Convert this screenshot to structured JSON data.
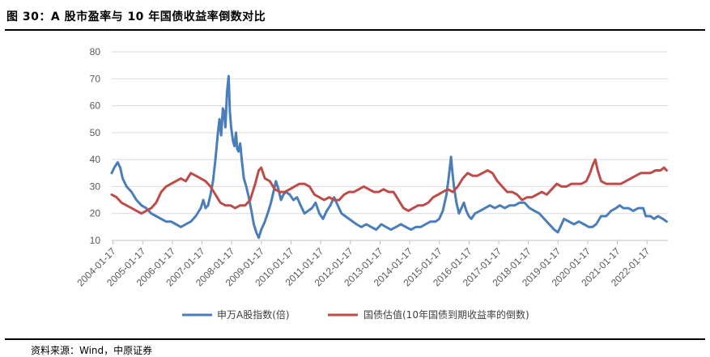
{
  "header": {
    "title": "图 30：A 股市盈率与 10 年国债收益率倒数对比"
  },
  "footer": {
    "source": "资料来源：Wind，中原证券"
  },
  "colors": {
    "series_pe": "#4a7ebb",
    "series_bond": "#be4b48",
    "grid": "#d9d9d9",
    "axis": "#bfbfbf"
  },
  "chart_data": {
    "type": "line",
    "title": "",
    "xlabel": "",
    "ylabel": "",
    "ylim": [
      10,
      80
    ],
    "yticks": [
      10,
      20,
      30,
      40,
      50,
      60,
      70,
      80
    ],
    "xlim": [
      "2004-01-01",
      "2022-10-01"
    ],
    "xticks": [
      "2004-01-17",
      "2005-01-17",
      "2006-01-17",
      "2007-01-17",
      "2008-01-17",
      "2009-01-17",
      "2010-01-17",
      "2011-01-17",
      "2012-01-17",
      "2013-01-17",
      "2014-01-17",
      "2015-01-17",
      "2016-01-17",
      "2017-01-17",
      "2018-01-17",
      "2019-01-17",
      "2020-01-17",
      "2021-01-17",
      "2022-01-17"
    ],
    "grid": "horizontal",
    "legend_position": "bottom",
    "series": [
      {
        "name": "申万A股指数(倍)",
        "points": [
          [
            "2004-01-01",
            35
          ],
          [
            "2004-02-01",
            37
          ],
          [
            "2004-03-15",
            39
          ],
          [
            "2004-04-15",
            37
          ],
          [
            "2004-05-15",
            33
          ],
          [
            "2004-07-01",
            30
          ],
          [
            "2004-09-01",
            28
          ],
          [
            "2004-11-01",
            25
          ],
          [
            "2005-01-01",
            23
          ],
          [
            "2005-03-01",
            22
          ],
          [
            "2005-05-01",
            20
          ],
          [
            "2005-07-01",
            19
          ],
          [
            "2005-09-01",
            18
          ],
          [
            "2005-11-01",
            17
          ],
          [
            "2006-01-01",
            17
          ],
          [
            "2006-03-01",
            16
          ],
          [
            "2006-05-01",
            15
          ],
          [
            "2006-07-01",
            16
          ],
          [
            "2006-09-01",
            17
          ],
          [
            "2006-11-01",
            19
          ],
          [
            "2007-01-01",
            22
          ],
          [
            "2007-02-01",
            25
          ],
          [
            "2007-03-01",
            22
          ],
          [
            "2007-04-01",
            23
          ],
          [
            "2007-05-01",
            27
          ],
          [
            "2007-06-01",
            32
          ],
          [
            "2007-07-01",
            40
          ],
          [
            "2007-08-01",
            50
          ],
          [
            "2007-08-20",
            55
          ],
          [
            "2007-09-10",
            49
          ],
          [
            "2007-10-01",
            59
          ],
          [
            "2007-10-15",
            58
          ],
          [
            "2007-11-01",
            52
          ],
          [
            "2007-11-20",
            65
          ],
          [
            "2007-12-10",
            71
          ],
          [
            "2007-12-25",
            58
          ],
          [
            "2008-01-10",
            52
          ],
          [
            "2008-02-01",
            47
          ],
          [
            "2008-02-20",
            45
          ],
          [
            "2008-03-10",
            50
          ],
          [
            "2008-03-25",
            44
          ],
          [
            "2008-04-10",
            43
          ],
          [
            "2008-05-01",
            46
          ],
          [
            "2008-05-20",
            40
          ],
          [
            "2008-06-15",
            33
          ],
          [
            "2008-07-15",
            30
          ],
          [
            "2008-08-15",
            26
          ],
          [
            "2008-09-15",
            21
          ],
          [
            "2008-10-15",
            16
          ],
          [
            "2008-11-15",
            13
          ],
          [
            "2008-12-15",
            11
          ],
          [
            "2009-01-15",
            14
          ],
          [
            "2009-03-01",
            17
          ],
          [
            "2009-04-15",
            21
          ],
          [
            "2009-05-15",
            24
          ],
          [
            "2009-06-15",
            28
          ],
          [
            "2009-07-15",
            32
          ],
          [
            "2009-08-15",
            29
          ],
          [
            "2009-09-15",
            25
          ],
          [
            "2009-10-15",
            27
          ],
          [
            "2009-11-15",
            28
          ],
          [
            "2010-01-01",
            27
          ],
          [
            "2010-02-15",
            25
          ],
          [
            "2010-04-01",
            26
          ],
          [
            "2010-05-15",
            23
          ],
          [
            "2010-07-01",
            20
          ],
          [
            "2010-08-15",
            21
          ],
          [
            "2010-10-01",
            22
          ],
          [
            "2010-11-15",
            24
          ],
          [
            "2011-01-01",
            20
          ],
          [
            "2011-02-15",
            18
          ],
          [
            "2011-04-01",
            21
          ],
          [
            "2011-05-15",
            23
          ],
          [
            "2011-07-01",
            26
          ],
          [
            "2011-08-15",
            23
          ],
          [
            "2011-10-01",
            20
          ],
          [
            "2011-11-15",
            19
          ],
          [
            "2012-01-01",
            18
          ],
          [
            "2012-02-15",
            17
          ],
          [
            "2012-04-01",
            16
          ],
          [
            "2012-06-01",
            15
          ],
          [
            "2012-08-01",
            16
          ],
          [
            "2012-10-01",
            15
          ],
          [
            "2012-12-01",
            14
          ],
          [
            "2013-02-01",
            16
          ],
          [
            "2013-04-01",
            15
          ],
          [
            "2013-06-01",
            14
          ],
          [
            "2013-08-01",
            15
          ],
          [
            "2013-10-01",
            16
          ],
          [
            "2013-12-01",
            15
          ],
          [
            "2014-02-01",
            14
          ],
          [
            "2014-04-01",
            15
          ],
          [
            "2014-06-01",
            15
          ],
          [
            "2014-08-01",
            16
          ],
          [
            "2014-10-01",
            17
          ],
          [
            "2014-12-01",
            17
          ],
          [
            "2015-01-15",
            18
          ],
          [
            "2015-03-01",
            21
          ],
          [
            "2015-04-15",
            27
          ],
          [
            "2015-05-15",
            34
          ],
          [
            "2015-06-10",
            41
          ],
          [
            "2015-06-25",
            36
          ],
          [
            "2015-07-15",
            30
          ],
          [
            "2015-08-15",
            24
          ],
          [
            "2015-09-15",
            20
          ],
          [
            "2015-10-15",
            22
          ],
          [
            "2015-11-15",
            24
          ],
          [
            "2015-12-15",
            21
          ],
          [
            "2016-01-15",
            19
          ],
          [
            "2016-02-15",
            18
          ],
          [
            "2016-04-01",
            20
          ],
          [
            "2016-06-01",
            21
          ],
          [
            "2016-08-01",
            22
          ],
          [
            "2016-10-01",
            23
          ],
          [
            "2016-12-01",
            22
          ],
          [
            "2017-02-01",
            23
          ],
          [
            "2017-04-01",
            22
          ],
          [
            "2017-06-01",
            23
          ],
          [
            "2017-08-01",
            23
          ],
          [
            "2017-10-01",
            24
          ],
          [
            "2017-12-01",
            24
          ],
          [
            "2018-02-01",
            22
          ],
          [
            "2018-04-01",
            21
          ],
          [
            "2018-06-01",
            20
          ],
          [
            "2018-08-01",
            18
          ],
          [
            "2018-10-01",
            16
          ],
          [
            "2018-12-01",
            14
          ],
          [
            "2019-01-15",
            13
          ],
          [
            "2019-02-15",
            15
          ],
          [
            "2019-04-01",
            18
          ],
          [
            "2019-06-01",
            17
          ],
          [
            "2019-08-01",
            16
          ],
          [
            "2019-10-01",
            17
          ],
          [
            "2019-12-01",
            16
          ],
          [
            "2020-02-01",
            15
          ],
          [
            "2020-03-15",
            15
          ],
          [
            "2020-05-01",
            16
          ],
          [
            "2020-07-01",
            19
          ],
          [
            "2020-09-01",
            19
          ],
          [
            "2020-11-01",
            21
          ],
          [
            "2021-01-01",
            22
          ],
          [
            "2021-02-15",
            23
          ],
          [
            "2021-04-01",
            22
          ],
          [
            "2021-06-01",
            22
          ],
          [
            "2021-08-01",
            21
          ],
          [
            "2021-10-01",
            22
          ],
          [
            "2021-12-01",
            22
          ],
          [
            "2022-01-01",
            19
          ],
          [
            "2022-03-01",
            19
          ],
          [
            "2022-04-15",
            18
          ],
          [
            "2022-06-01",
            19
          ],
          [
            "2022-08-01",
            18
          ],
          [
            "2022-09-15",
            17
          ]
        ]
      },
      {
        "name": "国债估值(10年国债到期收益率的倒数)",
        "points": [
          [
            "2004-01-01",
            27
          ],
          [
            "2004-03-01",
            26
          ],
          [
            "2004-05-01",
            24
          ],
          [
            "2004-07-01",
            23
          ],
          [
            "2004-09-01",
            22
          ],
          [
            "2004-11-01",
            21
          ],
          [
            "2005-01-01",
            20
          ],
          [
            "2005-03-01",
            21
          ],
          [
            "2005-05-01",
            22
          ],
          [
            "2005-07-01",
            24
          ],
          [
            "2005-09-01",
            28
          ],
          [
            "2005-11-01",
            30
          ],
          [
            "2006-01-01",
            31
          ],
          [
            "2006-03-01",
            32
          ],
          [
            "2006-05-01",
            33
          ],
          [
            "2006-07-01",
            32
          ],
          [
            "2006-09-01",
            35
          ],
          [
            "2006-11-01",
            34
          ],
          [
            "2007-01-01",
            33
          ],
          [
            "2007-03-01",
            32
          ],
          [
            "2007-05-01",
            30
          ],
          [
            "2007-07-01",
            27
          ],
          [
            "2007-09-01",
            24
          ],
          [
            "2007-11-01",
            23
          ],
          [
            "2008-01-01",
            23
          ],
          [
            "2008-03-01",
            22
          ],
          [
            "2008-05-01",
            23
          ],
          [
            "2008-07-01",
            23
          ],
          [
            "2008-09-01",
            25
          ],
          [
            "2008-11-01",
            31
          ],
          [
            "2008-12-15",
            36
          ],
          [
            "2009-01-15",
            37
          ],
          [
            "2009-03-01",
            33
          ],
          [
            "2009-05-01",
            32
          ],
          [
            "2009-07-01",
            29
          ],
          [
            "2009-09-01",
            28
          ],
          [
            "2009-11-01",
            28
          ],
          [
            "2010-01-01",
            29
          ],
          [
            "2010-03-01",
            30
          ],
          [
            "2010-05-01",
            31
          ],
          [
            "2010-07-01",
            31
          ],
          [
            "2010-09-01",
            30
          ],
          [
            "2010-11-01",
            27
          ],
          [
            "2011-01-01",
            26
          ],
          [
            "2011-03-01",
            25
          ],
          [
            "2011-05-01",
            26
          ],
          [
            "2011-07-01",
            25
          ],
          [
            "2011-09-01",
            25
          ],
          [
            "2011-11-01",
            27
          ],
          [
            "2012-01-01",
            28
          ],
          [
            "2012-03-01",
            28
          ],
          [
            "2012-05-01",
            29
          ],
          [
            "2012-07-01",
            30
          ],
          [
            "2012-09-01",
            29
          ],
          [
            "2012-11-01",
            28
          ],
          [
            "2013-01-01",
            28
          ],
          [
            "2013-03-01",
            29
          ],
          [
            "2013-05-01",
            28
          ],
          [
            "2013-07-01",
            28
          ],
          [
            "2013-09-01",
            25
          ],
          [
            "2013-11-01",
            22
          ],
          [
            "2014-01-01",
            21
          ],
          [
            "2014-03-01",
            22
          ],
          [
            "2014-05-01",
            23
          ],
          [
            "2014-07-01",
            23
          ],
          [
            "2014-09-01",
            24
          ],
          [
            "2014-11-01",
            26
          ],
          [
            "2015-01-01",
            27
          ],
          [
            "2015-03-01",
            28
          ],
          [
            "2015-05-01",
            29
          ],
          [
            "2015-07-01",
            28
          ],
          [
            "2015-09-01",
            30
          ],
          [
            "2015-11-01",
            33
          ],
          [
            "2016-01-01",
            35
          ],
          [
            "2016-03-01",
            34
          ],
          [
            "2016-05-01",
            34
          ],
          [
            "2016-07-01",
            35
          ],
          [
            "2016-09-01",
            36
          ],
          [
            "2016-11-01",
            35
          ],
          [
            "2017-01-01",
            32
          ],
          [
            "2017-03-01",
            30
          ],
          [
            "2017-05-01",
            28
          ],
          [
            "2017-07-01",
            28
          ],
          [
            "2017-09-01",
            27
          ],
          [
            "2017-11-01",
            25
          ],
          [
            "2018-01-01",
            26
          ],
          [
            "2018-03-01",
            26
          ],
          [
            "2018-05-01",
            27
          ],
          [
            "2018-07-01",
            28
          ],
          [
            "2018-09-01",
            27
          ],
          [
            "2018-11-01",
            29
          ],
          [
            "2019-01-01",
            31
          ],
          [
            "2019-03-01",
            30
          ],
          [
            "2019-05-01",
            30
          ],
          [
            "2019-07-01",
            31
          ],
          [
            "2019-09-01",
            31
          ],
          [
            "2019-11-01",
            31
          ],
          [
            "2020-01-01",
            32
          ],
          [
            "2020-02-15",
            35
          ],
          [
            "2020-03-20",
            38
          ],
          [
            "2020-04-20",
            40
          ],
          [
            "2020-05-20",
            36
          ],
          [
            "2020-07-01",
            32
          ],
          [
            "2020-09-01",
            31
          ],
          [
            "2020-11-01",
            31
          ],
          [
            "2021-01-01",
            31
          ],
          [
            "2021-03-01",
            31
          ],
          [
            "2021-05-01",
            32
          ],
          [
            "2021-07-01",
            33
          ],
          [
            "2021-09-01",
            34
          ],
          [
            "2021-11-01",
            35
          ],
          [
            "2022-01-01",
            35
          ],
          [
            "2022-03-01",
            35
          ],
          [
            "2022-05-01",
            36
          ],
          [
            "2022-07-01",
            36
          ],
          [
            "2022-08-15",
            37
          ],
          [
            "2022-09-15",
            36
          ]
        ]
      }
    ]
  }
}
